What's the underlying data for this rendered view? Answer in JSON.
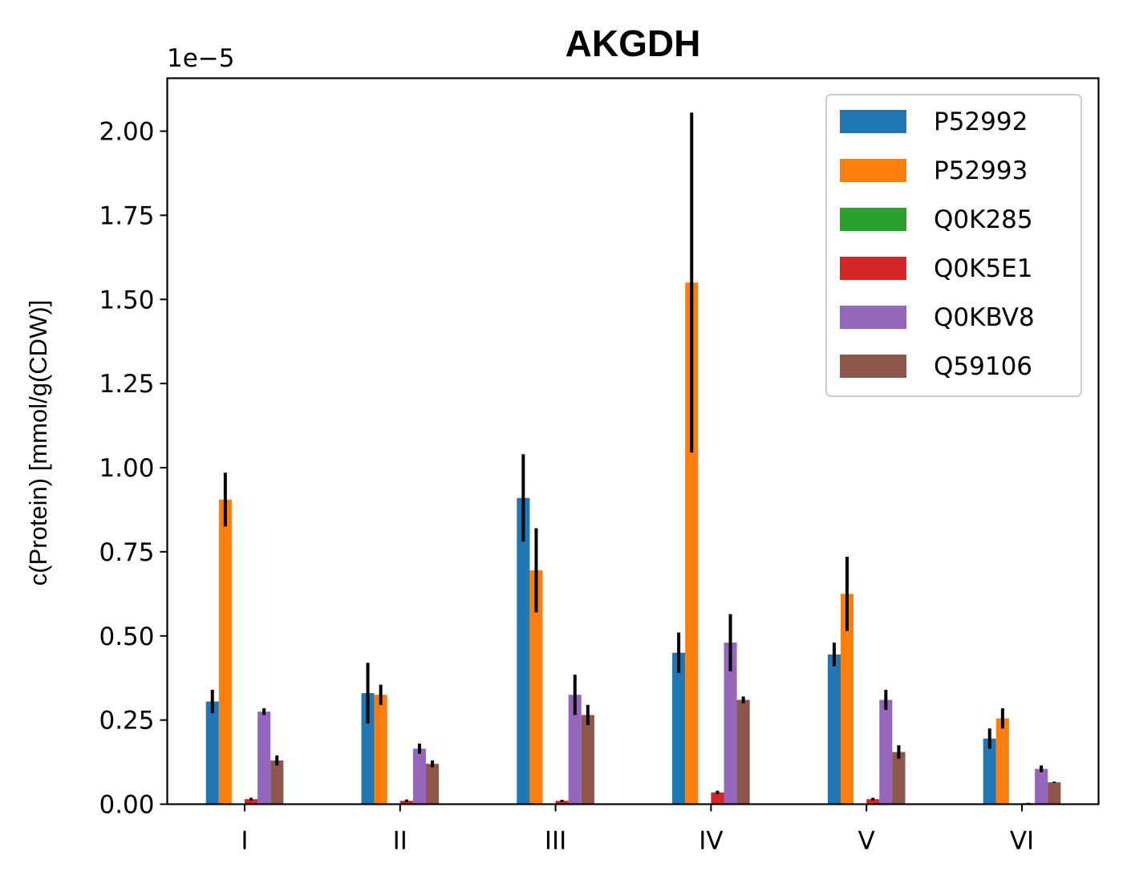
{
  "chart_data": {
    "type": "bar",
    "title": "AKGDH",
    "ylabel": "c(Protein) [mmol/g(CDW)]",
    "xlabel": "",
    "y_offset_text": "1e−5",
    "ylim": [
      0,
      2.16
    ],
    "yticks": [
      0.0,
      0.25,
      0.5,
      0.75,
      1.0,
      1.25,
      1.5,
      1.75,
      2.0
    ],
    "ytick_labels": [
      "0.00",
      "0.25",
      "0.50",
      "0.75",
      "1.00",
      "1.25",
      "1.50",
      "1.75",
      "2.00"
    ],
    "categories": [
      "I",
      "II",
      "III",
      "IV",
      "V",
      "VI"
    ],
    "legend_position": "top-right",
    "grid": false,
    "series": [
      {
        "name": "P52992",
        "color": "#1f77b4",
        "values": [
          0.305,
          0.33,
          0.91,
          0.45,
          0.445,
          0.195
        ],
        "errors": [
          0.035,
          0.09,
          0.13,
          0.06,
          0.035,
          0.03
        ]
      },
      {
        "name": "P52993",
        "color": "#ff7f0e",
        "values": [
          0.905,
          0.325,
          0.695,
          1.55,
          0.625,
          0.255
        ],
        "errors": [
          0.08,
          0.03,
          0.125,
          0.505,
          0.11,
          0.03
        ]
      },
      {
        "name": "Q0K285",
        "color": "#2ca02c",
        "values": [
          0.0,
          0.0,
          0.0,
          0.0,
          0.0,
          0.0
        ],
        "errors": [
          0,
          0,
          0,
          0,
          0,
          0
        ]
      },
      {
        "name": "Q0K5E1",
        "color": "#d62728",
        "values": [
          0.015,
          0.01,
          0.01,
          0.035,
          0.015,
          0.003
        ],
        "errors": [
          0.004,
          0.004,
          0.003,
          0.005,
          0.004,
          0.001
        ]
      },
      {
        "name": "Q0KBV8",
        "color": "#9467bd",
        "values": [
          0.275,
          0.165,
          0.325,
          0.48,
          0.31,
          0.105
        ],
        "errors": [
          0.01,
          0.015,
          0.06,
          0.085,
          0.03,
          0.01
        ]
      },
      {
        "name": "Q59106",
        "color": "#8c564b",
        "values": [
          0.13,
          0.12,
          0.265,
          0.31,
          0.155,
          0.065
        ],
        "errors": [
          0.015,
          0.01,
          0.03,
          0.01,
          0.02,
          0.002
        ]
      }
    ]
  }
}
